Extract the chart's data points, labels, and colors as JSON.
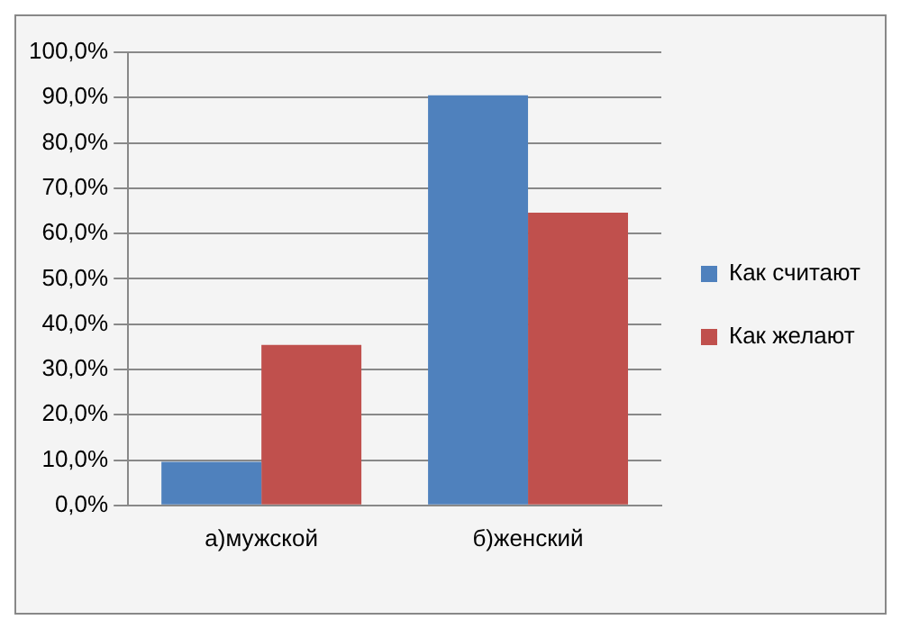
{
  "chart_data": {
    "type": "bar",
    "categories": [
      "а)мужской",
      "б)женский"
    ],
    "series": [
      {
        "name": "Как считают",
        "color": "#4f81bd",
        "values": [
          9.6,
          90.5
        ]
      },
      {
        "name": "Как желают",
        "color": "#c0504d",
        "values": [
          35.4,
          64.6
        ]
      }
    ],
    "ylim": [
      0,
      100
    ],
    "yticks": [
      {
        "value": 0,
        "label": "0,0%"
      },
      {
        "value": 10,
        "label": "10,0%"
      },
      {
        "value": 20,
        "label": "20,0%"
      },
      {
        "value": 30,
        "label": "30,0%"
      },
      {
        "value": 40,
        "label": "40,0%"
      },
      {
        "value": 50,
        "label": "50,0%"
      },
      {
        "value": 60,
        "label": "60,0%"
      },
      {
        "value": 70,
        "label": "70,0%"
      },
      {
        "value": 80,
        "label": "80,0%"
      },
      {
        "value": 90,
        "label": "90,0%"
      },
      {
        "value": 100,
        "label": "100,0%"
      }
    ],
    "grid": "y",
    "legend": "right"
  }
}
